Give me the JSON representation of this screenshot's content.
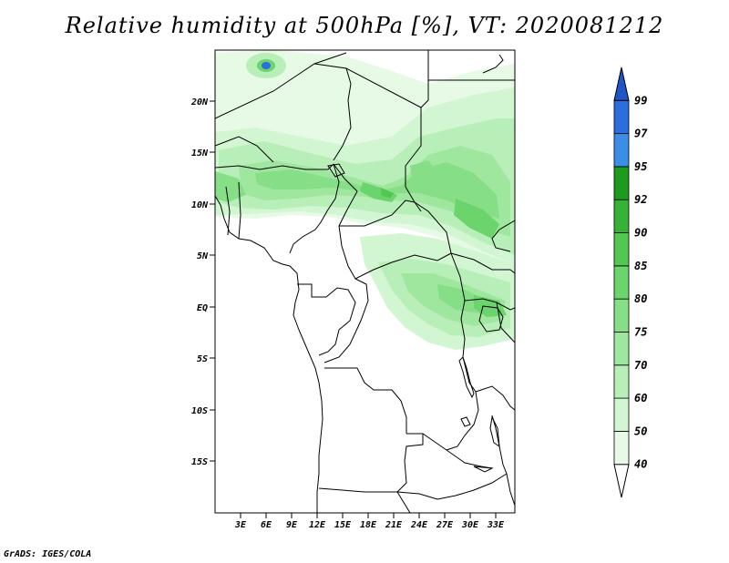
{
  "title": "Relative humidity at 500hPa [%], VT: 2020081212",
  "credit": "GrADS: IGES/COLA",
  "map": {
    "lat_labels": [
      "20N",
      "15N",
      "10N",
      "5N",
      "EQ",
      "5S",
      "10S",
      "15S"
    ],
    "lon_labels": [
      "3E",
      "6E",
      "9E",
      "12E",
      "15E",
      "18E",
      "21E",
      "24E",
      "27E",
      "30E",
      "33E"
    ]
  },
  "colorbar": {
    "levels": [
      "40",
      "50",
      "60",
      "70",
      "75",
      "80",
      "85",
      "90",
      "92",
      "95",
      "97",
      "99"
    ],
    "colors": [
      "#ffffff",
      "#e6fae6",
      "#d2f5d2",
      "#b8eeb8",
      "#9fe69f",
      "#86de86",
      "#6cd46c",
      "#52c852",
      "#36b236",
      "#1e9a1e",
      "#3b8ee6",
      "#2a6ee0",
      "#1f55c4"
    ]
  }
}
